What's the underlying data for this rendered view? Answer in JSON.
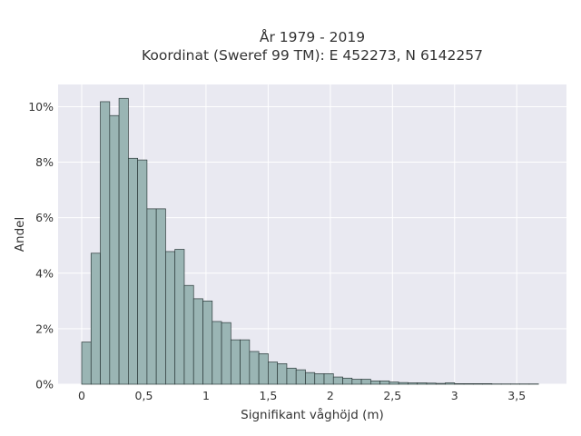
{
  "chart_data": {
    "type": "bar",
    "title_line1": "År 1979 - 2019",
    "title_line2": "Koordinat (Sweref 99 TM): E 452273, N 6142257",
    "xlabel": "Signifikant våghöjd (m)",
    "ylabel": "Andel",
    "xlim": [
      -0.19,
      3.9
    ],
    "ylim": [
      0,
      10.8
    ],
    "x_ticks": [
      {
        "value": 0,
        "label": "0"
      },
      {
        "value": 0.5,
        "label": "0,5"
      },
      {
        "value": 1,
        "label": "1"
      },
      {
        "value": 1.5,
        "label": "1,5"
      },
      {
        "value": 2,
        "label": "2"
      },
      {
        "value": 2.5,
        "label": "2,5"
      },
      {
        "value": 3,
        "label": "3"
      },
      {
        "value": 3.5,
        "label": "3,5"
      }
    ],
    "y_ticks": [
      {
        "value": 0,
        "label": "0%"
      },
      {
        "value": 2,
        "label": "2%"
      },
      {
        "value": 4,
        "label": "4%"
      },
      {
        "value": 6,
        "label": "6%"
      },
      {
        "value": 8,
        "label": "8%"
      },
      {
        "value": 10,
        "label": "10%"
      }
    ],
    "bin_start": 0,
    "bin_width": 0.075,
    "values": [
      1.52,
      4.72,
      10.18,
      9.68,
      10.3,
      8.14,
      8.08,
      6.32,
      6.32,
      4.78,
      4.86,
      3.56,
      3.08,
      3.0,
      2.26,
      2.22,
      1.6,
      1.6,
      1.18,
      1.1,
      0.8,
      0.74,
      0.58,
      0.52,
      0.42,
      0.38,
      0.38,
      0.26,
      0.22,
      0.18,
      0.18,
      0.12,
      0.12,
      0.08,
      0.06,
      0.05,
      0.05,
      0.04,
      0.03,
      0.05,
      0.02,
      0.02,
      0.02,
      0.02,
      0.01,
      0.01,
      0.01,
      0.01,
      0.01
    ],
    "grid": true,
    "colors": {
      "bar_fill": "#9ab5b4",
      "bar_stroke": "#2c3a3a",
      "plot_bg": "#e9e9f1",
      "grid": "#ffffff"
    }
  }
}
